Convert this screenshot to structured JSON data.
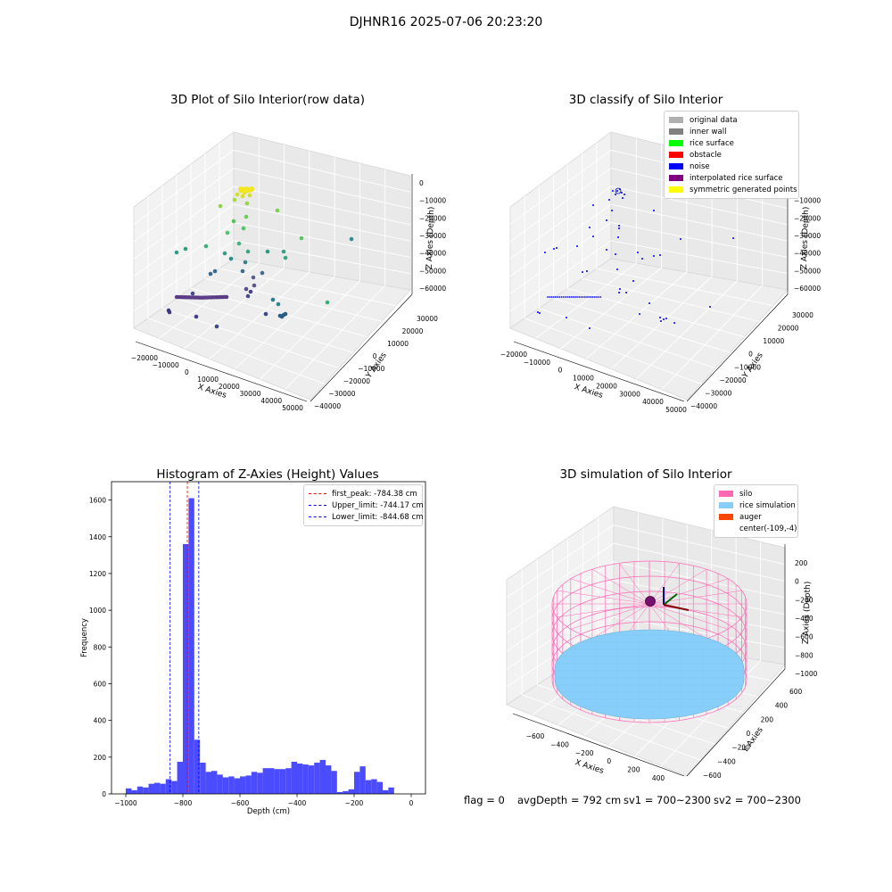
{
  "suptitle": "DJHNR16 2025-07-06 20:23:20",
  "colors": {
    "hist_bar": "#4b4bff",
    "first_peak_line": "#ff0000",
    "limit_line": "#0000ff",
    "silo": "#ff69b4",
    "rice": "#87cefa",
    "auger": "#ff4500"
  },
  "panel_raw": {
    "title": "3D Plot of Silo Interior(row data)",
    "xlabel": "X Axies",
    "ylabel": "Y Axies",
    "zlabel": "Z Axies (Depth)",
    "xticks": [
      "−20000",
      "−10000",
      "0",
      "10000",
      "20000",
      "30000",
      "40000",
      "50000"
    ],
    "yticks": [
      "30000",
      "20000",
      "10000",
      "0",
      "−10000",
      "−20000",
      "−30000",
      "−40000"
    ],
    "zticks": [
      "0",
      "−10000",
      "−20000",
      "−30000",
      "−40000",
      "−50000",
      "−60000"
    ]
  },
  "panel_classify": {
    "title": "3D classify of Silo Interior",
    "xlabel": "X Axies",
    "ylabel": "Y Axies",
    "zlabel": "Z Axies (Depth)",
    "xticks": [
      "−20000",
      "−10000",
      "0",
      "10000",
      "20000",
      "30000",
      "40000",
      "50000"
    ],
    "yticks": [
      "30000",
      "20000",
      "10000",
      "0",
      "−10000",
      "−20000",
      "−30000",
      "−40000"
    ],
    "zticks": [
      "0",
      "−10000",
      "−20000",
      "−30000",
      "−40000",
      "−50000",
      "−60000"
    ],
    "legend": [
      {
        "label": "original data",
        "color": "#b0b0b0"
      },
      {
        "label": "inner wall",
        "color": "#808080"
      },
      {
        "label": "rice surface",
        "color": "#00ff00"
      },
      {
        "label": "obstacle",
        "color": "#ff0000"
      },
      {
        "label": "noise",
        "color": "#0000ff"
      },
      {
        "label": "interpolated rice surface",
        "color": "#800080"
      },
      {
        "label": "symmetric generated points",
        "color": "#ffff00"
      }
    ]
  },
  "panel_sim": {
    "title": "3D simulation of Silo Interior",
    "xlabel": "X Axies",
    "ylabel": "Y Axies",
    "zlabel": "Z Axies (Depth)",
    "xticks": [
      "−600",
      "−400",
      "−200",
      "0",
      "200",
      "400"
    ],
    "yticks": [
      "600",
      "400",
      "200",
      "0",
      "−200",
      "−400",
      "−600"
    ],
    "zticks": [
      "200",
      "0",
      "−200",
      "−400",
      "−600",
      "−800",
      "−1000"
    ],
    "legend": [
      {
        "label": "silo",
        "color": "#ff69b4"
      },
      {
        "label": "rice simulation",
        "color": "#87cefa"
      },
      {
        "label": "auger",
        "color": "#ff4500"
      },
      {
        "label": "center(-109,-4)",
        "color": ""
      }
    ]
  },
  "footer": {
    "flag": "flag = 0",
    "avg": "avgDepth = 792 cm",
    "sv1": "sv1 = 700~2300",
    "sv2": "sv2 = 700~2300"
  },
  "chart_data": [
    {
      "type": "bar",
      "title": "Histogram of Z-Axies (Height) Values",
      "xlabel": "Depth (cm)",
      "ylabel": "Frequency",
      "xlim": [
        -1050,
        50
      ],
      "ylim": [
        0,
        1700
      ],
      "xticks": [
        -1000,
        -800,
        -600,
        -400,
        -200,
        0
      ],
      "yticks": [
        0,
        200,
        400,
        600,
        800,
        1000,
        1200,
        1400,
        1600
      ],
      "bin_width": 20,
      "bins": [
        [
          -1000,
          30
        ],
        [
          -980,
          20
        ],
        [
          -960,
          40
        ],
        [
          -940,
          35
        ],
        [
          -920,
          55
        ],
        [
          -900,
          60
        ],
        [
          -880,
          55
        ],
        [
          -860,
          80
        ],
        [
          -840,
          70
        ],
        [
          -820,
          175
        ],
        [
          -800,
          1360
        ],
        [
          -780,
          1610
        ],
        [
          -760,
          295
        ],
        [
          -740,
          170
        ],
        [
          -720,
          120
        ],
        [
          -700,
          125
        ],
        [
          -680,
          105
        ],
        [
          -660,
          90
        ],
        [
          -640,
          95
        ],
        [
          -620,
          85
        ],
        [
          -600,
          95
        ],
        [
          -580,
          100
        ],
        [
          -560,
          120
        ],
        [
          -540,
          115
        ],
        [
          -520,
          140
        ],
        [
          -500,
          140
        ],
        [
          -480,
          135
        ],
        [
          -460,
          135
        ],
        [
          -440,
          140
        ],
        [
          -420,
          175
        ],
        [
          -400,
          165
        ],
        [
          -380,
          160
        ],
        [
          -360,
          155
        ],
        [
          -340,
          170
        ],
        [
          -320,
          185
        ],
        [
          -300,
          155
        ],
        [
          -280,
          125
        ],
        [
          -260,
          10
        ],
        [
          -240,
          15
        ],
        [
          -220,
          25
        ],
        [
          -200,
          120
        ],
        [
          -180,
          150
        ],
        [
          -160,
          75
        ],
        [
          -140,
          80
        ],
        [
          -120,
          65
        ],
        [
          -100,
          20
        ],
        [
          -80,
          35
        ]
      ],
      "vlines": [
        {
          "label": "first_peak: -784.38 cm",
          "x": -784.38,
          "color": "#ff0000"
        },
        {
          "label": "Upper_limit: -744.17 cm",
          "x": -744.17,
          "color": "#0000ff"
        },
        {
          "label": "Lower_limit: -844.68 cm",
          "x": -844.68,
          "color": "#0000ff"
        }
      ]
    }
  ]
}
